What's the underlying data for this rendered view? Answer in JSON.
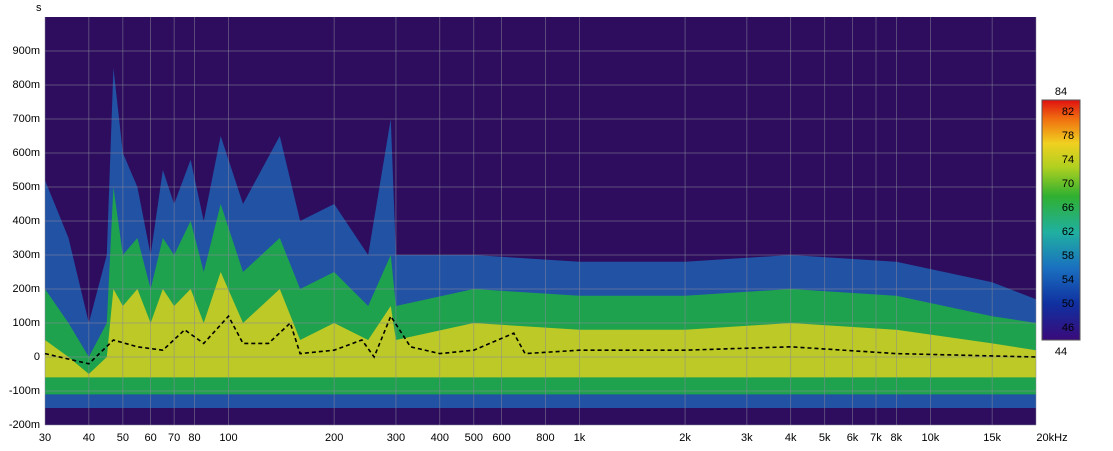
{
  "chart_data": {
    "type": "spectrogram",
    "y_label": "s",
    "xscale": "log",
    "xlim": [
      30,
      20000
    ],
    "ylim": [
      -0.2,
      1.0
    ],
    "background": "#2e0d5e",
    "grid": true,
    "xticks": [
      30,
      40,
      50,
      60,
      70,
      80,
      100,
      200,
      300,
      400,
      500,
      600,
      800,
      {
        "value": 1000,
        "label": "1k"
      },
      {
        "value": 2000,
        "label": "2k"
      },
      {
        "value": 3000,
        "label": "3k"
      },
      {
        "value": 4000,
        "label": "4k"
      },
      {
        "value": 5000,
        "label": "5k"
      },
      {
        "value": 6000,
        "label": "6k"
      },
      {
        "value": 7000,
        "label": "7k"
      },
      {
        "value": 8000,
        "label": "8k"
      },
      {
        "value": 10000,
        "label": "10k"
      },
      {
        "value": 15000,
        "label": "15k"
      },
      {
        "value": 20000,
        "label": "20kHz"
      }
    ],
    "yticks": [
      {
        "value": -0.2,
        "label": "-200m"
      },
      {
        "value": -0.1,
        "label": "-100m"
      },
      0,
      {
        "value": 0.1,
        "label": "100m"
      },
      {
        "value": 0.2,
        "label": "200m"
      },
      {
        "value": 0.3,
        "label": "300m"
      },
      {
        "value": 0.4,
        "label": "400m"
      },
      {
        "value": 0.5,
        "label": "500m"
      },
      {
        "value": 0.6,
        "label": "600m"
      },
      {
        "value": 0.7,
        "label": "700m"
      },
      {
        "value": 0.8,
        "label": "800m"
      },
      {
        "value": 0.9,
        "label": "900m"
      }
    ],
    "x": [
      30,
      35,
      40,
      45,
      47,
      50,
      55,
      60,
      65,
      70,
      78,
      85,
      95,
      110,
      140,
      160,
      200,
      250,
      290,
      300,
      500,
      1000,
      2000,
      4000,
      8000,
      15000,
      20000
    ],
    "series": [
      {
        "color": "#1f5fb0",
        "base": -0.15,
        "values": [
          0.52,
          0.35,
          0.1,
          0.3,
          0.85,
          0.6,
          0.5,
          0.3,
          0.55,
          0.45,
          0.58,
          0.4,
          0.65,
          0.45,
          0.65,
          0.4,
          0.45,
          0.3,
          0.7,
          0.3,
          0.3,
          0.28,
          0.28,
          0.3,
          0.28,
          0.22,
          0.17
        ]
      },
      {
        "color": "#1fb040",
        "base": -0.11,
        "values": [
          0.2,
          0.1,
          0.0,
          0.1,
          0.5,
          0.3,
          0.35,
          0.2,
          0.35,
          0.3,
          0.4,
          0.25,
          0.45,
          0.25,
          0.35,
          0.2,
          0.25,
          0.15,
          0.3,
          0.15,
          0.2,
          0.18,
          0.18,
          0.2,
          0.18,
          0.12,
          0.1
        ]
      },
      {
        "color": "#d8d020",
        "base": -0.06,
        "values": [
          0.05,
          0.0,
          -0.05,
          0.0,
          0.2,
          0.15,
          0.2,
          0.1,
          0.2,
          0.15,
          0.2,
          0.1,
          0.25,
          0.1,
          0.2,
          0.05,
          0.1,
          0.05,
          0.15,
          0.05,
          0.1,
          0.08,
          0.08,
          0.1,
          0.08,
          0.04,
          0.02
        ]
      }
    ],
    "peak_line": {
      "color": "#000000",
      "x": [
        30,
        40,
        47,
        55,
        65,
        75,
        85,
        100,
        110,
        130,
        150,
        160,
        200,
        240,
        260,
        290,
        330,
        400,
        500,
        650,
        700,
        1000,
        2000,
        4000,
        8000,
        20000
      ],
      "values": [
        0.01,
        -0.02,
        0.05,
        0.03,
        0.02,
        0.08,
        0.04,
        0.12,
        0.04,
        0.04,
        0.1,
        0.01,
        0.02,
        0.05,
        0.0,
        0.12,
        0.03,
        0.01,
        0.02,
        0.07,
        0.01,
        0.02,
        0.02,
        0.03,
        0.01,
        0.0
      ]
    },
    "colorbar": {
      "lim": [
        44,
        84
      ],
      "ticks": [
        84,
        82,
        78,
        74,
        70,
        66,
        62,
        58,
        54,
        50,
        46,
        44
      ]
    }
  }
}
